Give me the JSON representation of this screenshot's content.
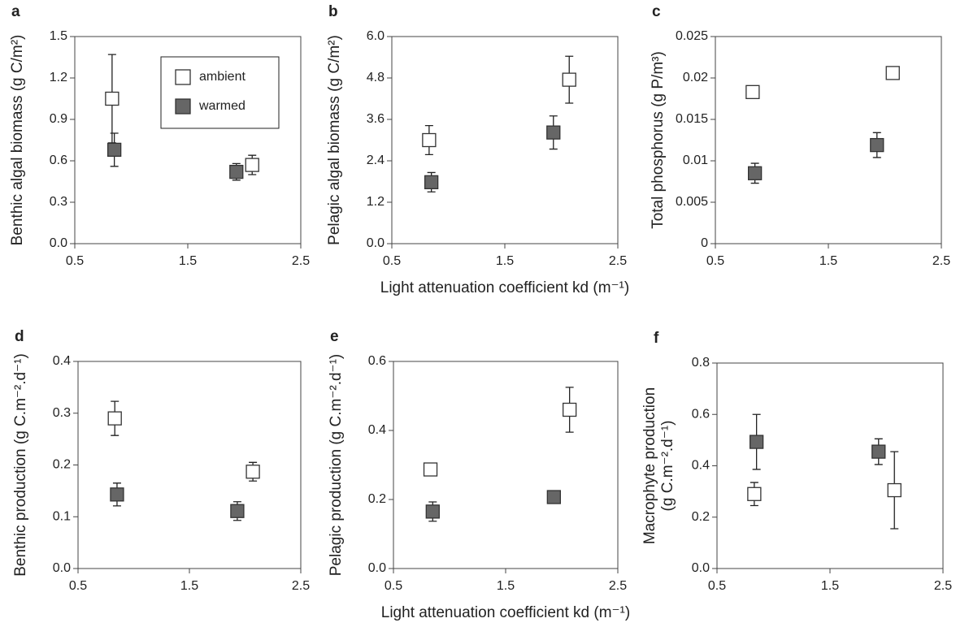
{
  "chart_data": [
    {
      "type": "scatter",
      "panel": "a",
      "ylabel": "Benthic algal biomass (g C/m²)",
      "xlim": [
        0.5,
        2.5
      ],
      "xticks": [
        0.5,
        1.5,
        2.5
      ],
      "ylim": [
        0,
        1.5
      ],
      "yticks": [
        {
          "value": 0,
          "label": "0.0"
        },
        0.3,
        0.6,
        0.9,
        1.2,
        1.5
      ],
      "legend": "upper right",
      "series": [
        {
          "name": "ambient",
          "color": "#ffffff",
          "x": [
            0.83,
            2.07
          ],
          "values": [
            1.05,
            0.57
          ],
          "errors": [
            0.32,
            0.07
          ]
        },
        {
          "name": "warmed",
          "color": "#666666",
          "x": [
            0.85,
            1.93
          ],
          "values": [
            0.68,
            0.52
          ],
          "errors": [
            0.12,
            0.06
          ]
        }
      ]
    },
    {
      "type": "scatter",
      "panel": "b",
      "ylabel": "Pelagic algal biomass (g C/m²)",
      "xlabel": "Light attenuation coefficient kd (m⁻¹)",
      "xlim": [
        0.5,
        2.5
      ],
      "xticks": [
        0.5,
        1.5,
        2.5
      ],
      "ylim": [
        0,
        6
      ],
      "yticks": [
        {
          "value": 0,
          "label": "0.0"
        },
        1.2,
        2.4,
        3.6,
        4.8,
        {
          "value": 6,
          "label": "6.0"
        }
      ],
      "series": [
        {
          "color": "#ffffff",
          "x": [
            0.83,
            2.07
          ],
          "values": [
            3.0,
            4.75
          ],
          "errors": [
            0.42,
            0.68
          ]
        },
        {
          "color": "#666666",
          "x": [
            0.85,
            1.93
          ],
          "values": [
            1.78,
            3.22
          ],
          "errors": [
            0.28,
            0.48
          ]
        }
      ]
    },
    {
      "type": "scatter",
      "panel": "c",
      "ylabel": "Total phosphorus (g P/m³)",
      "xlim": [
        0.5,
        2.5
      ],
      "xticks": [
        0.5,
        1.5,
        2.5
      ],
      "ylim": [
        0,
        0.025
      ],
      "yticks": [
        0,
        0.005,
        0.01,
        0.015,
        0.02,
        0.025
      ],
      "series": [
        {
          "color": "#ffffff",
          "x": [
            0.83,
            2.07
          ],
          "values": [
            0.0183,
            0.0206
          ],
          "errors": [
            0,
            0
          ]
        },
        {
          "color": "#666666",
          "x": [
            0.85,
            1.93
          ],
          "values": [
            0.0085,
            0.0119
          ],
          "errors": [
            0.0012,
            0.0015
          ]
        }
      ]
    },
    {
      "type": "scatter",
      "panel": "d",
      "ylabel": "Benthic production (g C.m⁻².d⁻¹)",
      "xlim": [
        0.5,
        2.5
      ],
      "xticks": [
        0.5,
        1.5,
        2.5
      ],
      "ylim": [
        0,
        0.4
      ],
      "yticks": [
        {
          "value": 0,
          "label": "0.0"
        },
        0.1,
        0.2,
        0.3,
        0.4
      ],
      "series": [
        {
          "color": "#ffffff",
          "x": [
            0.83,
            2.07
          ],
          "values": [
            0.29,
            0.187
          ],
          "errors": [
            0.033,
            0.018
          ]
        },
        {
          "color": "#666666",
          "x": [
            0.85,
            1.93
          ],
          "values": [
            0.143,
            0.111
          ],
          "errors": [
            0.022,
            0.018
          ]
        }
      ]
    },
    {
      "type": "scatter",
      "panel": "e",
      "ylabel": "Pelagic production (g C.m⁻².d⁻¹)",
      "xlabel": "Light attenuation coefficient kd (m⁻¹)",
      "xlim": [
        0.5,
        2.5
      ],
      "xticks": [
        0.5,
        1.5,
        2.5
      ],
      "ylim": [
        0,
        0.6
      ],
      "yticks": [
        {
          "value": 0,
          "label": "0.0"
        },
        0.2,
        0.4,
        0.6
      ],
      "series": [
        {
          "color": "#ffffff",
          "x": [
            0.83,
            2.07
          ],
          "values": [
            0.287,
            0.46
          ],
          "errors": [
            0,
            0.065
          ]
        },
        {
          "color": "#666666",
          "x": [
            0.85,
            1.93
          ],
          "values": [
            0.165,
            0.207
          ],
          "errors": [
            0.028,
            0
          ]
        }
      ]
    },
    {
      "type": "scatter",
      "panel": "f",
      "ylabel": [
        "Macrophyte production",
        "(g C.m⁻².d⁻¹)"
      ],
      "xlim": [
        0.5,
        2.5
      ],
      "xticks": [
        0.5,
        1.5,
        2.5
      ],
      "ylim": [
        0,
        0.8
      ],
      "yticks": [
        {
          "value": 0,
          "label": "0.0"
        },
        0.2,
        0.4,
        0.6,
        0.8
      ],
      "series": [
        {
          "color": "#ffffff",
          "x": [
            0.83,
            2.07
          ],
          "values": [
            0.29,
            0.305
          ],
          "errors": [
            0.045,
            0.15
          ]
        },
        {
          "color": "#666666",
          "x": [
            0.85,
            1.93
          ],
          "values": [
            0.493,
            0.455
          ],
          "errors": [
            0.107,
            0.05
          ]
        }
      ]
    }
  ]
}
